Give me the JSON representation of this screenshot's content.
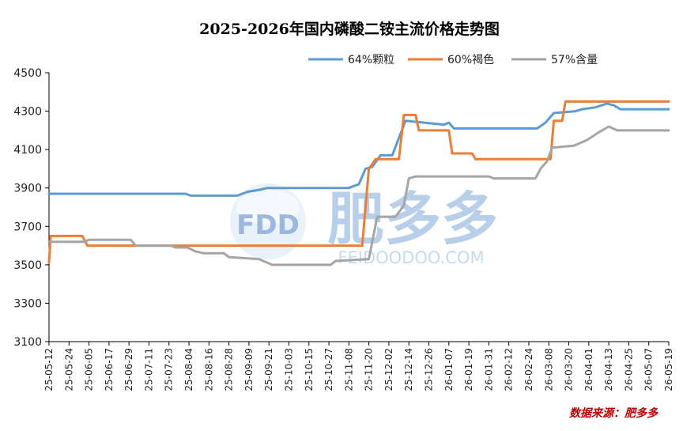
{
  "source_text": "数据来源：肥多多",
  "watermark": {
    "logo_text": "FDD",
    "cn_text": "肥多多",
    "en_text": "FEIDOODOO.COM",
    "color": "#4a7fc7"
  },
  "chart_data": {
    "type": "line",
    "title": "2025-2026年国内磷酸二铵主流价格走势图",
    "xlabel": "",
    "ylabel": "",
    "ylim": [
      3100,
      4500
    ],
    "yticks": [
      3100,
      3300,
      3500,
      3700,
      3900,
      4100,
      4300,
      4500
    ],
    "x_range": [
      "2025-05-12",
      "2026-05-19"
    ],
    "xtick_labels": [
      "25-05-12",
      "25-05-24",
      "25-06-05",
      "25-06-17",
      "25-06-29",
      "25-07-11",
      "25-07-23",
      "25-08-04",
      "25-08-16",
      "25-08-28",
      "25-09-09",
      "25-09-21",
      "25-10-03",
      "25-10-15",
      "25-10-27",
      "25-11-08",
      "25-11-20",
      "25-12-02",
      "25-12-14",
      "25-12-26",
      "26-01-07",
      "26-01-19",
      "26-01-31",
      "26-02-12",
      "26-02-24",
      "26-03-08",
      "26-03-20",
      "26-04-01",
      "26-04-13",
      "26-04-25",
      "26-05-07",
      "26-05-19"
    ],
    "legend_position": "top-right",
    "grid": false,
    "series": [
      {
        "name": "64%颗粒",
        "color": "#5b9bd5",
        "points": [
          [
            "2025-05-12",
            3870
          ],
          [
            "2025-08-02",
            3870
          ],
          [
            "2025-08-05",
            3860
          ],
          [
            "2025-09-02",
            3860
          ],
          [
            "2025-09-08",
            3880
          ],
          [
            "2025-09-15",
            3890
          ],
          [
            "2025-09-20",
            3900
          ],
          [
            "2025-11-08",
            3900
          ],
          [
            "2025-11-14",
            3920
          ],
          [
            "2025-11-18",
            4000
          ],
          [
            "2025-11-22",
            4010
          ],
          [
            "2025-11-27",
            4070
          ],
          [
            "2025-12-04",
            4070
          ],
          [
            "2025-12-08",
            4160
          ],
          [
            "2025-12-12",
            4250
          ],
          [
            "2026-01-04",
            4230
          ],
          [
            "2026-01-07",
            4240
          ],
          [
            "2026-01-10",
            4210
          ],
          [
            "2026-03-01",
            4210
          ],
          [
            "2026-03-06",
            4240
          ],
          [
            "2026-03-11",
            4290
          ],
          [
            "2026-03-24",
            4300
          ],
          [
            "2026-03-28",
            4310
          ],
          [
            "2026-04-05",
            4320
          ],
          [
            "2026-04-12",
            4340
          ],
          [
            "2026-04-16",
            4330
          ],
          [
            "2026-04-20",
            4310
          ],
          [
            "2026-05-19",
            4310
          ]
        ]
      },
      {
        "name": "60%褐色",
        "color": "#ed7d31",
        "points": [
          [
            "2025-05-12",
            3510
          ],
          [
            "2025-05-13",
            3650
          ],
          [
            "2025-06-01",
            3650
          ],
          [
            "2025-06-04",
            3600
          ],
          [
            "2025-11-16",
            3600
          ],
          [
            "2025-11-20",
            4000
          ],
          [
            "2025-11-24",
            4050
          ],
          [
            "2025-12-08",
            4050
          ],
          [
            "2025-12-11",
            4280
          ],
          [
            "2025-12-18",
            4280
          ],
          [
            "2025-12-20",
            4200
          ],
          [
            "2026-01-07",
            4200
          ],
          [
            "2026-01-09",
            4080
          ],
          [
            "2026-01-21",
            4080
          ],
          [
            "2026-01-23",
            4050
          ],
          [
            "2026-03-09",
            4050
          ],
          [
            "2026-03-11",
            4250
          ],
          [
            "2026-03-16",
            4250
          ],
          [
            "2026-03-18",
            4350
          ],
          [
            "2026-05-19",
            4350
          ]
        ]
      },
      {
        "name": "57%含量",
        "color": "#a5a5a5",
        "points": [
          [
            "2025-05-12",
            3620
          ],
          [
            "2025-06-02",
            3620
          ],
          [
            "2025-06-05",
            3630
          ],
          [
            "2025-06-30",
            3630
          ],
          [
            "2025-07-03",
            3600
          ],
          [
            "2025-07-24",
            3600
          ],
          [
            "2025-07-27",
            3590
          ],
          [
            "2025-08-03",
            3590
          ],
          [
            "2025-08-08",
            3570
          ],
          [
            "2025-08-13",
            3560
          ],
          [
            "2025-08-25",
            3560
          ],
          [
            "2025-08-28",
            3540
          ],
          [
            "2025-09-15",
            3530
          ],
          [
            "2025-09-23",
            3500
          ],
          [
            "2025-10-28",
            3500
          ],
          [
            "2025-10-31",
            3520
          ],
          [
            "2025-11-20",
            3530
          ],
          [
            "2025-11-25",
            3750
          ],
          [
            "2025-12-06",
            3750
          ],
          [
            "2025-12-11",
            3810
          ],
          [
            "2025-12-14",
            3950
          ],
          [
            "2025-12-18",
            3960
          ],
          [
            "2026-01-31",
            3960
          ],
          [
            "2026-02-03",
            3950
          ],
          [
            "2026-02-28",
            3950
          ],
          [
            "2026-03-03",
            4000
          ],
          [
            "2026-03-07",
            4040
          ],
          [
            "2026-03-10",
            4110
          ],
          [
            "2026-03-23",
            4120
          ],
          [
            "2026-03-31",
            4150
          ],
          [
            "2026-04-07",
            4190
          ],
          [
            "2026-04-13",
            4220
          ],
          [
            "2026-04-18",
            4200
          ],
          [
            "2026-05-19",
            4200
          ]
        ]
      }
    ]
  }
}
